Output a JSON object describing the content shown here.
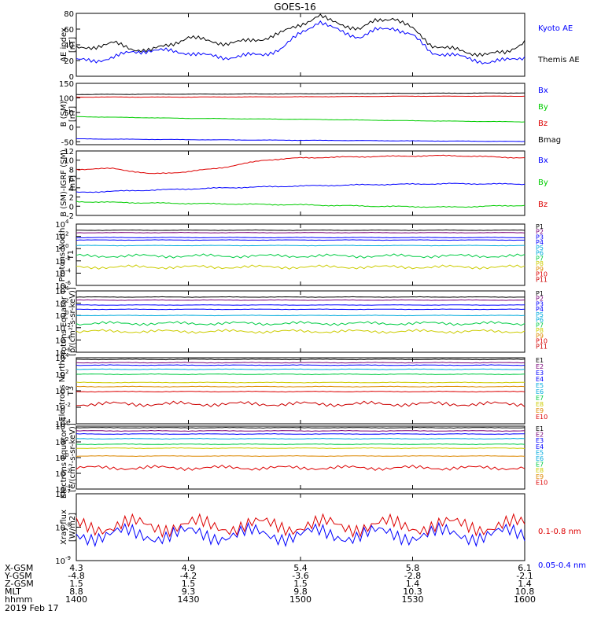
{
  "title": "GOES-16",
  "date": "2019 Feb 17",
  "time_ticks": [
    "1400",
    "1430",
    "1500",
    "1530",
    "1600"
  ],
  "orbit_rows": [
    {
      "label": "X-GSM",
      "values": [
        "4.3",
        "4.9",
        "5.4",
        "5.8",
        "6.1"
      ]
    },
    {
      "label": "Y-GSM",
      "values": [
        "-4.8",
        "-4.2",
        "-3.6",
        "-2.8",
        "-2.1"
      ]
    },
    {
      "label": "Z-GSM",
      "values": [
        "1.5",
        "1.5",
        "1.5",
        "1.4",
        "1.4"
      ]
    },
    {
      "label": "MLT",
      "values": [
        "8.8",
        "9.3",
        "9.8",
        "10.3",
        "10.8"
      ]
    },
    {
      "label": "hhmm",
      "values": [
        "1400",
        "1430",
        "1500",
        "1530",
        "1600"
      ]
    }
  ],
  "chart_data": [
    {
      "type": "line",
      "ylabel": "AE index [nT]",
      "ylim": [
        0,
        80
      ],
      "yticks": [
        "0",
        "20",
        "40",
        "60",
        "80"
      ],
      "x_range_min": [
        0,
        120
      ],
      "series": [
        {
          "name": "Kyoto AE",
          "color": "#0000ff",
          "x": [
            0,
            5,
            10,
            15,
            20,
            25,
            30,
            35,
            40,
            45,
            50,
            55,
            60,
            65,
            68,
            72,
            76,
            80,
            85,
            90,
            95,
            100,
            105,
            110,
            115,
            120
          ],
          "values": [
            20,
            20,
            24,
            31,
            33,
            32,
            30,
            26,
            24,
            26,
            28,
            35,
            55,
            70,
            62,
            55,
            50,
            58,
            62,
            52,
            30,
            28,
            22,
            18,
            20,
            25
          ]
        },
        {
          "name": "Themis AE",
          "color": "#000000",
          "x": [
            0,
            5,
            10,
            15,
            20,
            25,
            30,
            35,
            40,
            45,
            50,
            55,
            60,
            65,
            68,
            72,
            76,
            80,
            85,
            90,
            95,
            100,
            105,
            110,
            115,
            120
          ],
          "values": [
            35,
            38,
            42,
            35,
            33,
            40,
            50,
            45,
            42,
            44,
            48,
            55,
            66,
            77,
            70,
            65,
            60,
            70,
            75,
            60,
            40,
            35,
            30,
            28,
            30,
            45
          ]
        }
      ]
    },
    {
      "type": "line",
      "ylabel": "B (SM) [nT]",
      "ylim": [
        -60,
        150
      ],
      "yticks": [
        "-50",
        "0",
        "50",
        "100",
        "150"
      ],
      "series": [
        {
          "name": "Bx",
          "color": "#0000ff",
          "x": [
            0,
            30,
            60,
            90,
            120
          ],
          "values": [
            -40,
            -43,
            -45,
            -47,
            -49
          ]
        },
        {
          "name": "By",
          "color": "#00cc00",
          "x": [
            0,
            30,
            60,
            90,
            120
          ],
          "values": [
            36,
            30,
            27,
            22,
            18
          ]
        },
        {
          "name": "Bz",
          "color": "#dd0000",
          "x": [
            0,
            30,
            60,
            90,
            120
          ],
          "values": [
            103,
            103,
            104,
            106,
            106
          ]
        },
        {
          "name": "Bmag",
          "color": "#000000",
          "x": [
            0,
            30,
            60,
            90,
            120
          ],
          "values": [
            112,
            113,
            114,
            116,
            117
          ]
        }
      ]
    },
    {
      "type": "line",
      "ylabel": "B (SM)-IGRF (SM) [nT]",
      "ylim": [
        -2,
        12
      ],
      "yticks": [
        "-2",
        "0",
        "2",
        "4",
        "6",
        "8",
        "10",
        "12"
      ],
      "series": [
        {
          "name": "Bx",
          "color": "#0000ff",
          "x": [
            0,
            20,
            40,
            60,
            80,
            100,
            120
          ],
          "values": [
            3.0,
            3.5,
            4.0,
            4.4,
            4.7,
            4.9,
            4.8
          ]
        },
        {
          "name": "By",
          "color": "#00cc00",
          "x": [
            0,
            20,
            40,
            60,
            80,
            100,
            120
          ],
          "values": [
            1.0,
            0.7,
            0.5,
            0.3,
            0.0,
            -0.2,
            0.2
          ]
        },
        {
          "name": "Bz",
          "color": "#dd0000",
          "x": [
            0,
            10,
            20,
            30,
            40,
            50,
            60,
            80,
            100,
            120
          ],
          "values": [
            8.0,
            8.2,
            7.0,
            7.5,
            8.5,
            10.0,
            10.5,
            10.8,
            11.0,
            10.5
          ]
        }
      ]
    },
    {
      "type": "line",
      "ylabel": "Protons North T1",
      "ylog": true,
      "ylim_exp": [
        -6,
        4
      ],
      "legend": [
        "P1",
        "P2",
        "P3",
        "P4",
        "P5",
        "P6",
        "P7",
        "P8",
        "P9",
        "P10",
        "P11"
      ],
      "series": [
        {
          "color": "#000000",
          "log_value": 3.0
        },
        {
          "color": "#7a007a",
          "log_value": 2.6
        },
        {
          "color": "#0000ff",
          "log_value": 1.8
        },
        {
          "color": "#0000ff",
          "log_value": 1.4
        },
        {
          "color": "#00aadd",
          "log_value": 0.5
        },
        {
          "color": "#00cc44",
          "log_value": -1.2
        },
        {
          "color": "#cccc00",
          "log_value": -3.0
        }
      ]
    },
    {
      "type": "line",
      "ylabel": "Protons Equator T2 [p/(cm²-s-sr-keV)]",
      "ylog": true,
      "ylim_exp": [
        -6,
        4
      ],
      "legend": [
        "P1",
        "P2",
        "P3",
        "P4",
        "P5",
        "P6",
        "P7",
        "P8",
        "P9",
        "P10",
        "P11"
      ],
      "series": [
        {
          "color": "#000000",
          "log_value": 3.0
        },
        {
          "color": "#7a007a",
          "log_value": 2.5
        },
        {
          "color": "#0000ff",
          "log_value": 1.7
        },
        {
          "color": "#0000ff",
          "log_value": 1.0
        },
        {
          "color": "#00aadd",
          "log_value": 0.0
        },
        {
          "color": "#00cc44",
          "log_value": -1.3
        },
        {
          "color": "#cccc00",
          "log_value": -2.6
        }
      ]
    },
    {
      "type": "line",
      "ylabel": "Electrons North T3",
      "ylog": true,
      "ylim_exp": [
        -4,
        4
      ],
      "legend": [
        "E1",
        "E2",
        "E3",
        "E4",
        "E5",
        "E6",
        "E7",
        "E8",
        "E9",
        "E10"
      ],
      "series": [
        {
          "color": "#000000",
          "log_value": 3.8
        },
        {
          "color": "#7a007a",
          "log_value": 3.4
        },
        {
          "color": "#0000ff",
          "log_value": 3.1
        },
        {
          "color": "#00aadd",
          "log_value": 2.6
        },
        {
          "color": "#00cc44",
          "log_value": 2.0
        },
        {
          "color": "#cccc00",
          "log_value": 1.0
        },
        {
          "color": "#dd8800",
          "log_value": 0.5
        },
        {
          "color": "#dd0000",
          "log_value": -0.1
        },
        {
          "color": "#cc0000",
          "log_value": -1.6
        }
      ]
    },
    {
      "type": "line",
      "ylabel": "Electrons Equator T4 [e/(cm²-s-sr-keV)]",
      "ylog": true,
      "ylim_exp": [
        -4,
        4
      ],
      "legend": [
        "E1",
        "E2",
        "E3",
        "E4",
        "E5",
        "E6",
        "E7",
        "E8",
        "E9",
        "E10"
      ],
      "series": [
        {
          "color": "#000000",
          "log_value": 3.8
        },
        {
          "color": "#7a007a",
          "log_value": 3.4
        },
        {
          "color": "#0000ff",
          "log_value": 3.0
        },
        {
          "color": "#00aadd",
          "log_value": 2.4
        },
        {
          "color": "#00cc44",
          "log_value": 1.7
        },
        {
          "color": "#cccc00",
          "log_value": 1.2
        },
        {
          "color": "#dd8800",
          "log_value": 0.2
        },
        {
          "color": "#dd0000",
          "log_value": -1.3
        }
      ]
    },
    {
      "type": "line",
      "ylabel": "Xray flux [W/m2]",
      "ylog": true,
      "ylim_exp": [
        -9,
        -7
      ],
      "series": [
        {
          "name": "0.1-0.8 nm",
          "color": "#dd0000",
          "log_value": -7.95
        },
        {
          "name": "0.05-0.4 nm",
          "color": "#0000ff",
          "log_value": -8.22
        }
      ]
    }
  ]
}
